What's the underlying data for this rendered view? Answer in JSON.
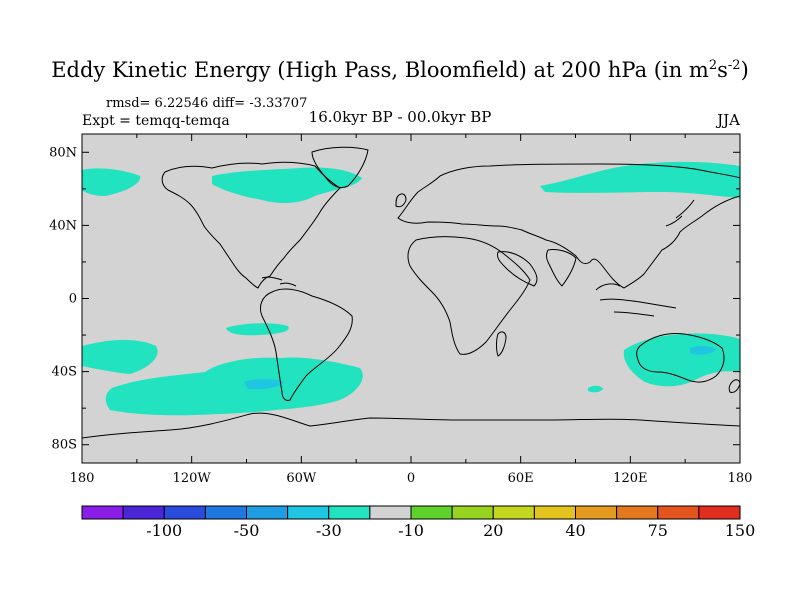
{
  "title": {
    "text": "Eddy Kinetic Energy (High Pass, Bloomfield) at 200 hPa (in m",
    "sup1": "2",
    "mid": "s",
    "sup2": "-2",
    "close": ")"
  },
  "stats": {
    "rmsd": "rmsd= 6.22546 diff= -3.33707",
    "expt": "Expt = temqq-temqa",
    "period": "16.0kyr BP - 00.0kyr BP",
    "season": "JJA"
  },
  "axes": {
    "lat_ticks": [
      "80N",
      "40N",
      "0",
      "40S",
      "80S"
    ],
    "lon_ticks": [
      "180",
      "120W",
      "60W",
      "0",
      "60E",
      "120E",
      "180"
    ]
  },
  "colors": {
    "background_field": "#d3d3d3",
    "anomaly_fill": "#21e3c0",
    "inner_blue": "#1fc6e2"
  },
  "colorbar": {
    "colors": [
      "#8a1de8",
      "#4b26d9",
      "#2a4cdc",
      "#1f78e0",
      "#1f9de2",
      "#1fc6e2",
      "#21e3c0",
      "#d3d3d3",
      "#5ed12a",
      "#96d41f",
      "#c4d61f",
      "#e3c41f",
      "#e39a1f",
      "#e3781f",
      "#e3541f",
      "#e32d1f"
    ],
    "labels": [
      "-100",
      "-50",
      "-30",
      "-10",
      "20",
      "40",
      "75",
      "150"
    ]
  }
}
